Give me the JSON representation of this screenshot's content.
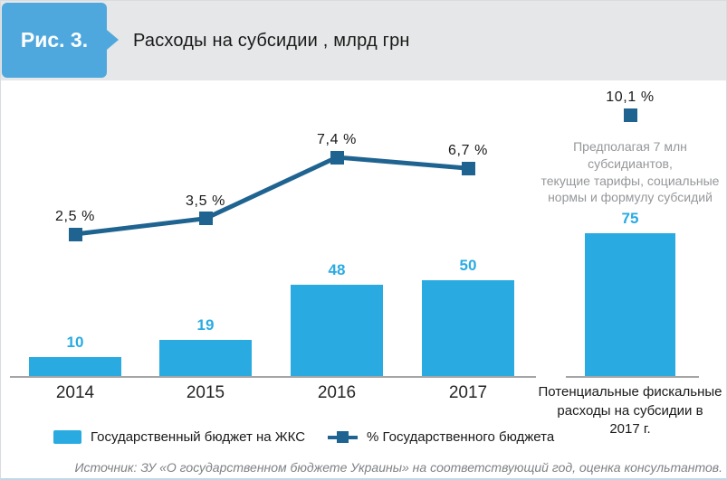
{
  "figure": {
    "badge_label": "Рис. 3.",
    "title": "Расходы на субсидии , млрд грн",
    "source": "Источник: ЗУ «О государственном бюджете Украины» на соответствующий год, оценка консультантов."
  },
  "colors": {
    "bar": "#29abe2",
    "line": "#1f6391",
    "badge": "#4fa8dd",
    "header_band": "#e6e7e8",
    "axis": "#a3a5a7",
    "value_label": "#29abe2",
    "annotation_text": "#95979a",
    "source_text": "#7f8184"
  },
  "chart_data": {
    "type": "bar",
    "title": "Расходы на субсидии, млрд грн",
    "categories": [
      "2014",
      "2015",
      "2016",
      "2017"
    ],
    "series": [
      {
        "name": "Государственный бюджет на ЖКС",
        "type": "bar",
        "values": [
          10,
          19,
          48,
          50
        ],
        "value_labels": [
          "10",
          "19",
          "48",
          "50"
        ]
      },
      {
        "name": "% Государственного бюджета",
        "type": "line",
        "values": [
          2.5,
          3.5,
          7.4,
          6.7
        ],
        "point_labels": [
          "2,5 %",
          "3,5 %",
          "7,4 %",
          "6,7 %"
        ]
      }
    ],
    "extra_bar": {
      "category": "Потенциальные фискальные расходы на субсидии в 2017 г.",
      "category_lines": [
        "Потенциальные фискальные",
        "расходы на субсидии в",
        "2017 г."
      ],
      "value": 75,
      "value_label": "75",
      "pct_value": 10.1,
      "pct_label": "10,1 %"
    },
    "annotation_lines": [
      "Предполагая 7 млн субсидиантов,",
      "текущие тарифы, социальные",
      "нормы и формулу субсидий"
    ],
    "legend": [
      "Государственный бюджет на ЖКС",
      "% Государственного бюджета"
    ],
    "legend_position": "bottom",
    "grid": false,
    "xlabel": "",
    "ylabel": "",
    "ylim": [
      0,
      85
    ],
    "pct_axis_lim": [
      0,
      12
    ]
  }
}
